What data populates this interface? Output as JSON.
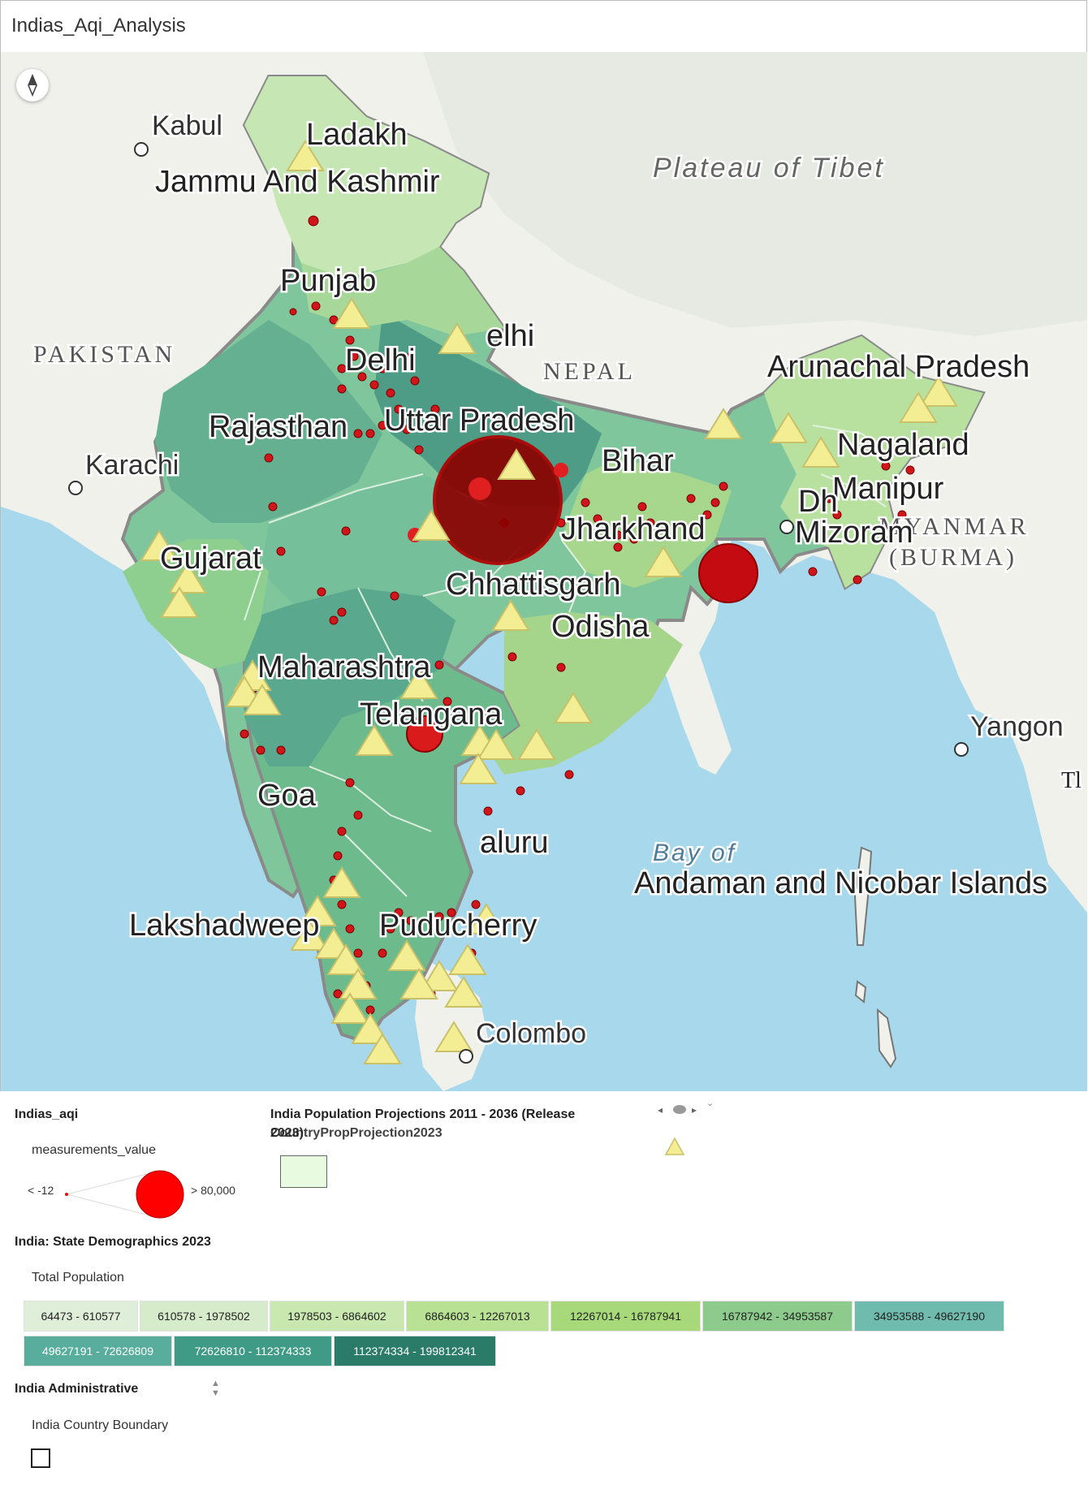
{
  "app_title": "Indias_Aqi_Analysis",
  "map": {
    "labels": {
      "cities": [
        "Kabul",
        "Karachi",
        "Colombo",
        "Yangon"
      ],
      "countries": [
        "PAKISTAN",
        "NEPAL",
        "MYANMAR",
        "(BURMA)"
      ],
      "regions": [
        "Plateau of Tibet",
        "Bay of"
      ],
      "states": [
        "Ladakh",
        "Jammu And Kashmir",
        "Punjab",
        "Delhi",
        "elhi",
        "Rajasthan",
        "Uttar Pradesh",
        "Bihar",
        "Jharkhand",
        "Gujarat",
        "Chhattisgarh",
        "Odisha",
        "Maharashtra",
        "Telangana",
        "Goa",
        "aluru",
        "Lakshadweep",
        "Puducherry",
        "Arunachal Pradesh",
        "Nagaland",
        "Manipur",
        "Mizoram",
        "Dh",
        "Andaman and Nicobar Islands",
        "Tl"
      ]
    }
  },
  "legend": {
    "aqi": {
      "title": "Indias_aqi",
      "field": "measurements_value",
      "min_label": "< -12",
      "max_label": "> 80,000",
      "color": "#ff0000"
    },
    "projection": {
      "title": "India Population Projections 2011 - 2036 (Release 2023)",
      "title_line1": "India Population Projections 2011 - 2036 (Release",
      "title_line2": "2023)",
      "overlap_text": "CountryPropProjection2023",
      "swatch_color": "#e8fbe0"
    },
    "triangle_color": "#f3ee93",
    "demographics": {
      "title": "India: State Demographics 2023",
      "field": "Total Population",
      "classes": [
        {
          "label": "64473 - 610577",
          "color": "#dfeed9"
        },
        {
          "label": "610578 - 1978502",
          "color": "#d6ebc9"
        },
        {
          "label": "1978503 - 6864602",
          "color": "#c9e8b0"
        },
        {
          "label": "6864603 - 12267013",
          "color": "#b9e193"
        },
        {
          "label": "12267014 - 16787941",
          "color": "#a7d97b"
        },
        {
          "label": "16787942 - 34953587",
          "color": "#8ccb8b"
        },
        {
          "label": "34953588 - 49627190",
          "color": "#6fbcae"
        },
        {
          "label": "49627191 - 72626809",
          "color": "#58ad9c"
        },
        {
          "label": "72626810 - 112374333",
          "color": "#3f9b86"
        },
        {
          "label": "112374334 - 199812341",
          "color": "#2a7c69"
        }
      ]
    },
    "admin": {
      "title": "India Administrative",
      "item": "India Country Boundary"
    }
  }
}
